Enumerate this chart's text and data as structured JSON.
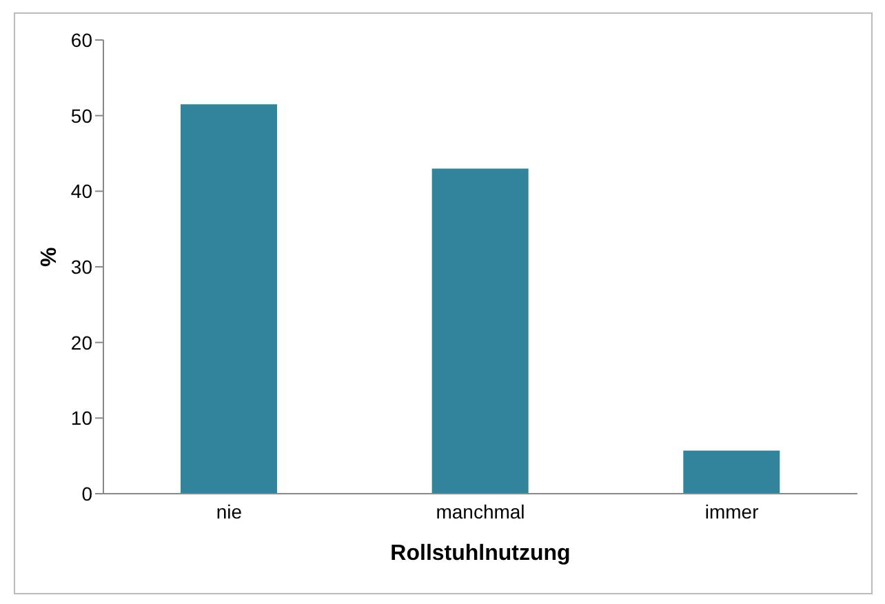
{
  "chart_data": {
    "type": "bar",
    "categories": [
      "nie",
      "manchmal",
      "immer"
    ],
    "values": [
      51.5,
      43,
      5.7
    ],
    "color": "#31849b",
    "xlabel": "Rollstuhlnutzung",
    "ylabel": "%",
    "ylim": [
      0,
      60
    ],
    "yticks": [
      0,
      10,
      20,
      30,
      40,
      50,
      60
    ],
    "grid": false,
    "legend": false
  }
}
